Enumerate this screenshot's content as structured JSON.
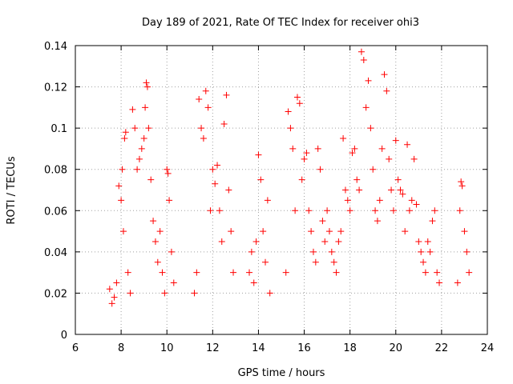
{
  "chart_data": {
    "type": "scatter",
    "title": "Day 189 of 2021, Rate Of TEC Index for receiver ohi3",
    "xlabel": "GPS time / hours",
    "ylabel": "ROTI / TECUs",
    "xlim": [
      6,
      24
    ],
    "ylim": [
      0,
      0.14
    ],
    "x_ticks": [
      "6",
      "8",
      "10",
      "12",
      "14",
      "16",
      "18",
      "20",
      "22",
      "24"
    ],
    "y_ticks": [
      "0",
      "0.02",
      "0.04",
      "0.06",
      "0.08",
      "0.1",
      "0.12",
      "0.14"
    ],
    "grid": true,
    "marker": "+",
    "color": "#ff0000",
    "series": [
      {
        "points": [
          [
            7.5,
            0.022
          ],
          [
            7.6,
            0.015
          ],
          [
            7.7,
            0.018
          ],
          [
            7.8,
            0.025
          ],
          [
            7.9,
            0.072
          ],
          [
            8.0,
            0.065
          ],
          [
            8.05,
            0.08
          ],
          [
            8.1,
            0.05
          ],
          [
            8.15,
            0.095
          ],
          [
            8.2,
            0.098
          ],
          [
            8.3,
            0.03
          ],
          [
            8.4,
            0.02
          ],
          [
            8.5,
            0.109
          ],
          [
            8.6,
            0.1
          ],
          [
            8.7,
            0.08
          ],
          [
            8.8,
            0.085
          ],
          [
            8.9,
            0.09
          ],
          [
            9.0,
            0.095
          ],
          [
            9.05,
            0.11
          ],
          [
            9.1,
            0.122
          ],
          [
            9.15,
            0.12
          ],
          [
            9.2,
            0.1
          ],
          [
            9.3,
            0.075
          ],
          [
            9.4,
            0.055
          ],
          [
            9.5,
            0.045
          ],
          [
            9.6,
            0.035
          ],
          [
            9.7,
            0.05
          ],
          [
            9.8,
            0.03
          ],
          [
            9.9,
            0.02
          ],
          [
            10.0,
            0.08
          ],
          [
            10.05,
            0.078
          ],
          [
            10.1,
            0.065
          ],
          [
            10.2,
            0.04
          ],
          [
            10.3,
            0.025
          ],
          [
            11.2,
            0.02
          ],
          [
            11.3,
            0.03
          ],
          [
            11.4,
            0.114
          ],
          [
            11.5,
            0.1
          ],
          [
            11.6,
            0.095
          ],
          [
            11.7,
            0.118
          ],
          [
            11.8,
            0.11
          ],
          [
            11.9,
            0.06
          ],
          [
            12.0,
            0.08
          ],
          [
            12.1,
            0.073
          ],
          [
            12.2,
            0.082
          ],
          [
            12.3,
            0.06
          ],
          [
            12.4,
            0.045
          ],
          [
            12.5,
            0.102
          ],
          [
            12.6,
            0.116
          ],
          [
            12.7,
            0.07
          ],
          [
            12.8,
            0.05
          ],
          [
            12.9,
            0.03
          ],
          [
            13.6,
            0.03
          ],
          [
            13.7,
            0.04
          ],
          [
            13.8,
            0.025
          ],
          [
            13.9,
            0.045
          ],
          [
            14.0,
            0.087
          ],
          [
            14.1,
            0.075
          ],
          [
            14.2,
            0.05
          ],
          [
            14.3,
            0.035
          ],
          [
            14.4,
            0.065
          ],
          [
            14.5,
            0.02
          ],
          [
            15.2,
            0.03
          ],
          [
            15.3,
            0.108
          ],
          [
            15.4,
            0.1
          ],
          [
            15.5,
            0.09
          ],
          [
            15.6,
            0.06
          ],
          [
            15.7,
            0.115
          ],
          [
            15.8,
            0.112
          ],
          [
            15.9,
            0.075
          ],
          [
            16.0,
            0.085
          ],
          [
            16.1,
            0.088
          ],
          [
            16.2,
            0.06
          ],
          [
            16.3,
            0.05
          ],
          [
            16.4,
            0.04
          ],
          [
            16.5,
            0.035
          ],
          [
            16.6,
            0.09
          ],
          [
            16.7,
            0.08
          ],
          [
            16.8,
            0.055
          ],
          [
            16.9,
            0.045
          ],
          [
            17.0,
            0.06
          ],
          [
            17.1,
            0.05
          ],
          [
            17.2,
            0.04
          ],
          [
            17.3,
            0.035
          ],
          [
            17.4,
            0.03
          ],
          [
            17.5,
            0.045
          ],
          [
            17.6,
            0.05
          ],
          [
            17.7,
            0.095
          ],
          [
            17.8,
            0.07
          ],
          [
            17.9,
            0.065
          ],
          [
            18.0,
            0.06
          ],
          [
            18.1,
            0.088
          ],
          [
            18.2,
            0.09
          ],
          [
            18.3,
            0.075
          ],
          [
            18.4,
            0.07
          ],
          [
            18.5,
            0.137
          ],
          [
            18.6,
            0.133
          ],
          [
            18.7,
            0.11
          ],
          [
            18.8,
            0.123
          ],
          [
            18.9,
            0.1
          ],
          [
            19.0,
            0.08
          ],
          [
            19.1,
            0.06
          ],
          [
            19.2,
            0.055
          ],
          [
            19.3,
            0.065
          ],
          [
            19.4,
            0.09
          ],
          [
            19.5,
            0.126
          ],
          [
            19.6,
            0.118
          ],
          [
            19.7,
            0.085
          ],
          [
            19.8,
            0.07
          ],
          [
            19.9,
            0.06
          ],
          [
            20.0,
            0.094
          ],
          [
            20.1,
            0.075
          ],
          [
            20.2,
            0.07
          ],
          [
            20.3,
            0.068
          ],
          [
            20.4,
            0.05
          ],
          [
            20.5,
            0.092
          ],
          [
            20.6,
            0.06
          ],
          [
            20.7,
            0.065
          ],
          [
            20.8,
            0.085
          ],
          [
            20.9,
            0.063
          ],
          [
            21.0,
            0.045
          ],
          [
            21.1,
            0.04
          ],
          [
            21.2,
            0.035
          ],
          [
            21.3,
            0.03
          ],
          [
            21.4,
            0.045
          ],
          [
            21.5,
            0.04
          ],
          [
            21.6,
            0.055
          ],
          [
            21.7,
            0.06
          ],
          [
            21.8,
            0.03
          ],
          [
            21.9,
            0.025
          ],
          [
            22.7,
            0.025
          ],
          [
            22.8,
            0.06
          ],
          [
            22.85,
            0.074
          ],
          [
            22.9,
            0.072
          ],
          [
            23.0,
            0.05
          ],
          [
            23.1,
            0.04
          ],
          [
            23.2,
            0.03
          ]
        ]
      }
    ]
  }
}
